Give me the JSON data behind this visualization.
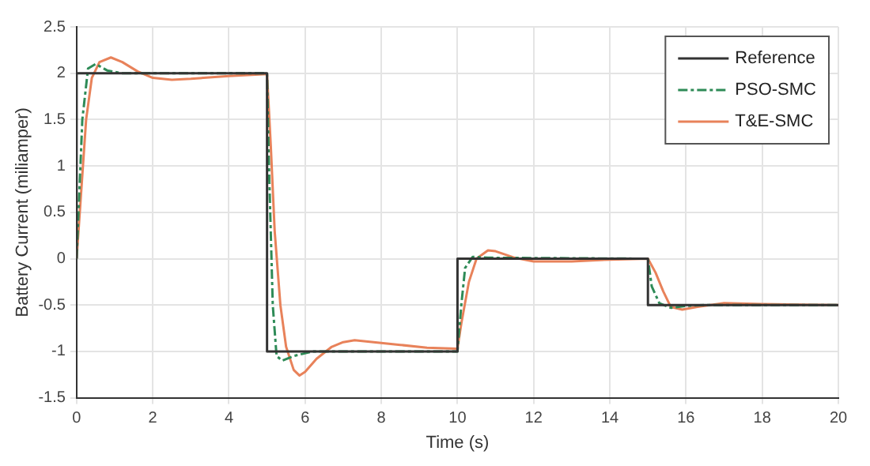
{
  "chart_data": {
    "type": "line",
    "xlabel": "Time (s)",
    "ylabel": "Battery Current (miliamper)",
    "xlim": [
      0,
      20
    ],
    "xticks": [
      0,
      2,
      4,
      6,
      8,
      10,
      12,
      14,
      16,
      18,
      20
    ],
    "ylim": [
      -1.5,
      2.5
    ],
    "yticks": [
      -1.5,
      -1,
      -0.5,
      0,
      0.5,
      1,
      1.5,
      2,
      2.5
    ],
    "grid": true,
    "legend": "top right",
    "marker": "none",
    "series": [
      {
        "name": "Reference",
        "color": "#333333",
        "line_style": "solid",
        "x": [
          0,
          0,
          5,
          5,
          10,
          10,
          15,
          15,
          20
        ],
        "values": [
          0,
          2,
          2,
          -1,
          -1,
          0,
          0,
          -0.5,
          -0.5
        ]
      },
      {
        "name": "PSO-SMC",
        "color": "#2e8b57",
        "line_style": "dashed",
        "x": [
          0,
          0.15,
          0.3,
          0.5,
          0.8,
          1.2,
          5,
          5.05,
          5.15,
          5.25,
          5.4,
          5.7,
          6.2,
          10,
          10.1,
          10.2,
          10.4,
          10.8,
          15,
          15.1,
          15.3,
          15.6,
          16,
          16.5,
          20
        ],
        "values": [
          0,
          1.5,
          2.05,
          2.1,
          2.03,
          2,
          2,
          1,
          -0.5,
          -1.05,
          -1.1,
          -1.05,
          -1,
          -1,
          -0.5,
          -0.1,
          0.02,
          0.01,
          0,
          -0.3,
          -0.48,
          -0.53,
          -0.51,
          -0.5,
          -0.5
        ]
      },
      {
        "name": "T&E-SMC",
        "color": "#e8825a",
        "line_style": "solid",
        "x": [
          0,
          0.1,
          0.25,
          0.4,
          0.6,
          0.9,
          1.2,
          1.6,
          2,
          2.5,
          3,
          4,
          5,
          5.1,
          5.2,
          5.35,
          5.5,
          5.7,
          5.85,
          6,
          6.3,
          6.7,
          7,
          7.3,
          7.8,
          8.5,
          9.2,
          10,
          10.1,
          10.3,
          10.5,
          10.8,
          11,
          11.5,
          12,
          13,
          14,
          15,
          15.2,
          15.4,
          15.6,
          15.9,
          16.3,
          17,
          18,
          20
        ],
        "values": [
          0,
          0.6,
          1.5,
          1.95,
          2.12,
          2.17,
          2.12,
          2.02,
          1.95,
          1.93,
          1.94,
          1.97,
          1.99,
          1.2,
          0.3,
          -0.5,
          -0.95,
          -1.2,
          -1.26,
          -1.22,
          -1.08,
          -0.95,
          -0.9,
          -0.88,
          -0.9,
          -0.93,
          -0.96,
          -0.97,
          -0.7,
          -0.25,
          0,
          0.09,
          0.08,
          0.01,
          -0.03,
          -0.03,
          -0.01,
          0,
          -0.15,
          -0.35,
          -0.52,
          -0.55,
          -0.52,
          -0.48,
          -0.49,
          -0.5
        ]
      }
    ]
  }
}
